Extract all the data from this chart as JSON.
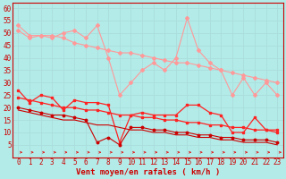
{
  "xlabel": "Vent moyen/en rafales ( km/h )",
  "background_color": "#b2ebe8",
  "grid_color": "#aadddd",
  "x": [
    0,
    1,
    2,
    3,
    4,
    5,
    6,
    7,
    8,
    9,
    10,
    11,
    12,
    13,
    14,
    15,
    16,
    17,
    18,
    19,
    20,
    21,
    22,
    23
  ],
  "series": [
    {
      "name": "rafales_jagged",
      "color": "#ff9999",
      "lw": 0.8,
      "marker": "D",
      "ms": 2.0,
      "values": [
        53,
        49,
        49,
        48,
        50,
        51,
        48,
        53,
        40,
        25,
        30,
        35,
        38,
        35,
        40,
        56,
        43,
        38,
        35,
        25,
        32,
        25,
        30,
        25
      ]
    },
    {
      "name": "rafales_trend",
      "color": "#ff9999",
      "lw": 0.8,
      "marker": "D",
      "ms": 2.0,
      "values": [
        51,
        48,
        49,
        49,
        48,
        46,
        45,
        44,
        43,
        42,
        42,
        41,
        40,
        39,
        38,
        38,
        37,
        36,
        35,
        34,
        33,
        32,
        31,
        30
      ]
    },
    {
      "name": "vent_moyen_jagged",
      "color": "#ff2222",
      "lw": 0.9,
      "marker": "s",
      "ms": 2.0,
      "values": [
        27,
        22,
        25,
        24,
        19,
        23,
        22,
        22,
        21,
        6,
        17,
        18,
        17,
        17,
        17,
        21,
        21,
        18,
        17,
        10,
        10,
        16,
        11,
        11
      ]
    },
    {
      "name": "vent_moyen_trend",
      "color": "#ff2222",
      "lw": 0.9,
      "marker": "s",
      "ms": 2.0,
      "values": [
        24,
        23,
        22,
        21,
        20,
        20,
        19,
        19,
        18,
        17,
        17,
        16,
        16,
        15,
        15,
        14,
        14,
        13,
        13,
        12,
        12,
        11,
        11,
        10
      ]
    },
    {
      "name": "vent_min_jagged",
      "color": "#cc0000",
      "lw": 0.8,
      "marker": "o",
      "ms": 1.8,
      "values": [
        20,
        19,
        18,
        17,
        17,
        16,
        15,
        6,
        8,
        5,
        12,
        12,
        11,
        11,
        10,
        10,
        9,
        9,
        8,
        8,
        7,
        7,
        7,
        6
      ]
    },
    {
      "name": "vent_min_trend",
      "color": "#cc0000",
      "lw": 0.8,
      "marker": null,
      "ms": 0,
      "values": [
        19,
        18,
        17,
        16,
        15,
        15,
        14,
        13,
        13,
        12,
        11,
        11,
        10,
        10,
        9,
        9,
        8,
        8,
        7,
        7,
        6,
        6,
        6,
        5
      ]
    }
  ],
  "ylim": [
    0,
    62
  ],
  "yticks": [
    5,
    10,
    15,
    20,
    25,
    30,
    35,
    40,
    45,
    50,
    55,
    60
  ],
  "xlim": [
    -0.5,
    23.5
  ],
  "xticks": [
    0,
    1,
    2,
    3,
    4,
    5,
    6,
    7,
    8,
    9,
    10,
    11,
    12,
    13,
    14,
    15,
    16,
    17,
    18,
    19,
    20,
    21,
    22,
    23
  ],
  "tick_color": "#cc0000",
  "label_fontsize": 5.5,
  "xlabel_fontsize": 6.5,
  "arrow_color": "#dd2222"
}
